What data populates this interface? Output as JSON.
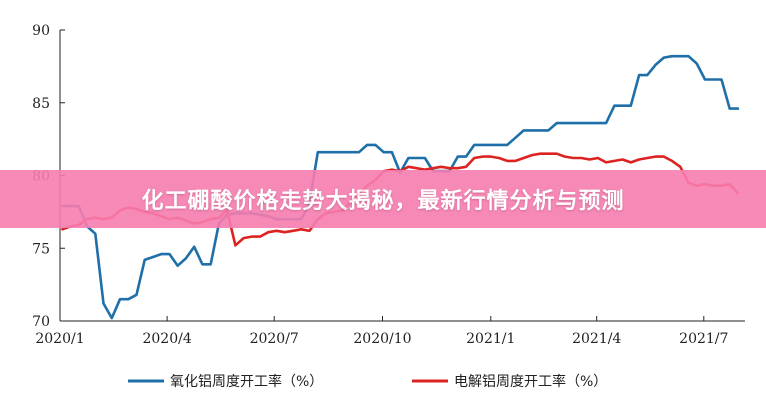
{
  "banner": {
    "title": "化工硼酸价格走势大揭秘，最新行情分析与预测",
    "background": "#f77db0"
  },
  "chart_data": {
    "type": "line",
    "title": "",
    "xlabel": "",
    "ylabel": "",
    "x_ticks": [
      "2020/1",
      "2020/4",
      "2020/7",
      "2020/10",
      "2021/1",
      "2021/4",
      "2021/7"
    ],
    "y_ticks": [
      70,
      75,
      80,
      85,
      90
    ],
    "ylim": [
      70,
      90
    ],
    "xlim": [
      "2020/1",
      "2021/8"
    ],
    "grid": false,
    "legend": "bottom",
    "x": [
      "2020-01-03",
      "2020-01-10",
      "2020-01-17",
      "2020-01-24",
      "2020-01-31",
      "2020-02-07",
      "2020-02-14",
      "2020-02-21",
      "2020-02-28",
      "2020-03-06",
      "2020-03-13",
      "2020-03-20",
      "2020-03-27",
      "2020-04-03",
      "2020-04-10",
      "2020-04-17",
      "2020-04-24",
      "2020-05-01",
      "2020-05-08",
      "2020-05-15",
      "2020-05-22",
      "2020-05-29",
      "2020-06-05",
      "2020-06-12",
      "2020-06-19",
      "2020-06-26",
      "2020-07-03",
      "2020-07-10",
      "2020-07-17",
      "2020-07-24",
      "2020-07-31",
      "2020-08-07",
      "2020-08-14",
      "2020-08-21",
      "2020-08-28",
      "2020-09-04",
      "2020-09-11",
      "2020-09-18",
      "2020-09-25",
      "2020-10-02",
      "2020-10-09",
      "2020-10-16",
      "2020-10-23",
      "2020-10-30",
      "2020-11-06",
      "2020-11-13",
      "2020-11-20",
      "2020-11-27",
      "2020-12-04",
      "2020-12-11",
      "2020-12-18",
      "2020-12-25",
      "2021-01-01",
      "2021-01-08",
      "2021-01-15",
      "2021-01-22",
      "2021-01-29",
      "2021-02-05",
      "2021-02-12",
      "2021-02-19",
      "2021-02-26",
      "2021-03-05",
      "2021-03-12",
      "2021-03-19",
      "2021-03-26",
      "2021-04-02",
      "2021-04-09",
      "2021-04-16",
      "2021-04-23",
      "2021-04-30",
      "2021-05-07",
      "2021-05-14",
      "2021-05-21",
      "2021-05-28",
      "2021-06-04",
      "2021-06-11",
      "2021-06-18",
      "2021-06-25",
      "2021-07-02",
      "2021-07-09",
      "2021-07-16",
      "2021-07-23",
      "2021-07-30"
    ],
    "series": [
      {
        "name": "氧化铝周度开工率（%）",
        "color": "#1f6fa8",
        "values": [
          77.9,
          77.9,
          77.9,
          76.5,
          76.0,
          71.2,
          70.2,
          71.5,
          71.5,
          71.8,
          74.2,
          74.4,
          74.6,
          74.6,
          73.8,
          74.3,
          75.1,
          73.9,
          73.9,
          76.7,
          77.3,
          77.4,
          77.4,
          77.4,
          77.3,
          77.2,
          77.0,
          77.0,
          77.0,
          77.0,
          78.1,
          81.6,
          81.6,
          81.6,
          81.6,
          81.6,
          81.6,
          82.1,
          82.1,
          81.6,
          81.6,
          80.2,
          81.2,
          81.2,
          81.2,
          80.3,
          80.3,
          80.3,
          81.3,
          81.3,
          82.1,
          82.1,
          82.1,
          82.1,
          82.1,
          82.6,
          83.1,
          83.1,
          83.1,
          83.1,
          83.6,
          83.6,
          83.6,
          83.6,
          83.6,
          83.6,
          83.6,
          84.8,
          84.8,
          84.8,
          86.9,
          86.9,
          87.6,
          88.1,
          88.2,
          88.2,
          88.2,
          87.7,
          86.6,
          86.6,
          86.6,
          84.6,
          84.6
        ]
      },
      {
        "name": "电解铝周度开工率（%）",
        "color": "#dd2222",
        "values": [
          76.3,
          76.5,
          76.6,
          77.0,
          77.1,
          77.0,
          77.1,
          77.6,
          77.8,
          77.7,
          77.5,
          77.4,
          77.2,
          77.0,
          77.1,
          76.9,
          76.7,
          76.8,
          77.0,
          77.1,
          77.6,
          75.2,
          75.7,
          75.8,
          75.8,
          76.1,
          76.2,
          76.1,
          76.2,
          76.3,
          76.2,
          77.0,
          77.4,
          77.5,
          77.6,
          78.2,
          78.7,
          79.3,
          79.7,
          80.3,
          80.4,
          80.3,
          80.6,
          80.5,
          80.4,
          80.5,
          80.6,
          80.5,
          80.5,
          80.6,
          81.2,
          81.3,
          81.3,
          81.2,
          81.0,
          81.0,
          81.2,
          81.4,
          81.5,
          81.5,
          81.5,
          81.3,
          81.2,
          81.2,
          81.1,
          81.2,
          80.9,
          81.0,
          81.1,
          80.9,
          81.1,
          81.2,
          81.3,
          81.3,
          81.0,
          80.6,
          79.5,
          79.3,
          79.4,
          79.3,
          79.3,
          79.4,
          78.8
        ]
      }
    ]
  }
}
